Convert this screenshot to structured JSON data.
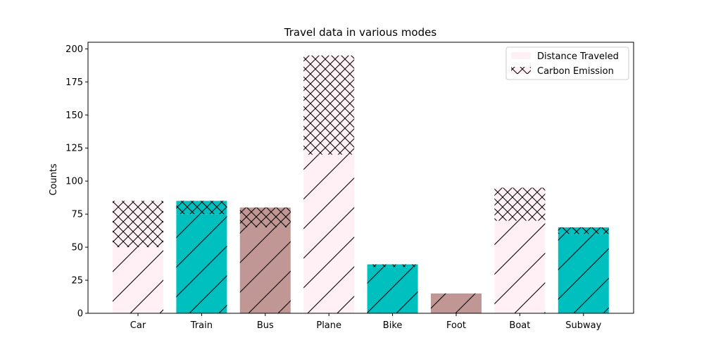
{
  "chart_data": {
    "type": "bar",
    "stacked": true,
    "title": "Travel data in various modes",
    "xlabel": "",
    "ylabel": "Counts",
    "categories": [
      "Car",
      "Train",
      "Bus",
      "Plane",
      "Bike",
      "Foot",
      "Boat",
      "Subway"
    ],
    "series": [
      {
        "name": "Distance Traveled",
        "values": [
          50,
          75,
          65,
          120,
          35,
          15,
          70,
          60
        ],
        "hatch": "diagonal"
      },
      {
        "name": "Carbon Emission",
        "values": [
          35,
          10,
          15,
          75,
          2,
          0,
          25,
          5
        ],
        "hatch": "cross"
      }
    ],
    "bar_colors": [
      "#fff0f5",
      "#00bfbf",
      "#c09795",
      "#fff0f5",
      "#00bfbf",
      "#c09795",
      "#fff0f5",
      "#00bfbf"
    ],
    "ylim": [
      0,
      205
    ],
    "yticks": [
      0,
      25,
      50,
      75,
      100,
      125,
      150,
      175,
      200
    ],
    "grid": false,
    "legend_position": "top-right"
  }
}
